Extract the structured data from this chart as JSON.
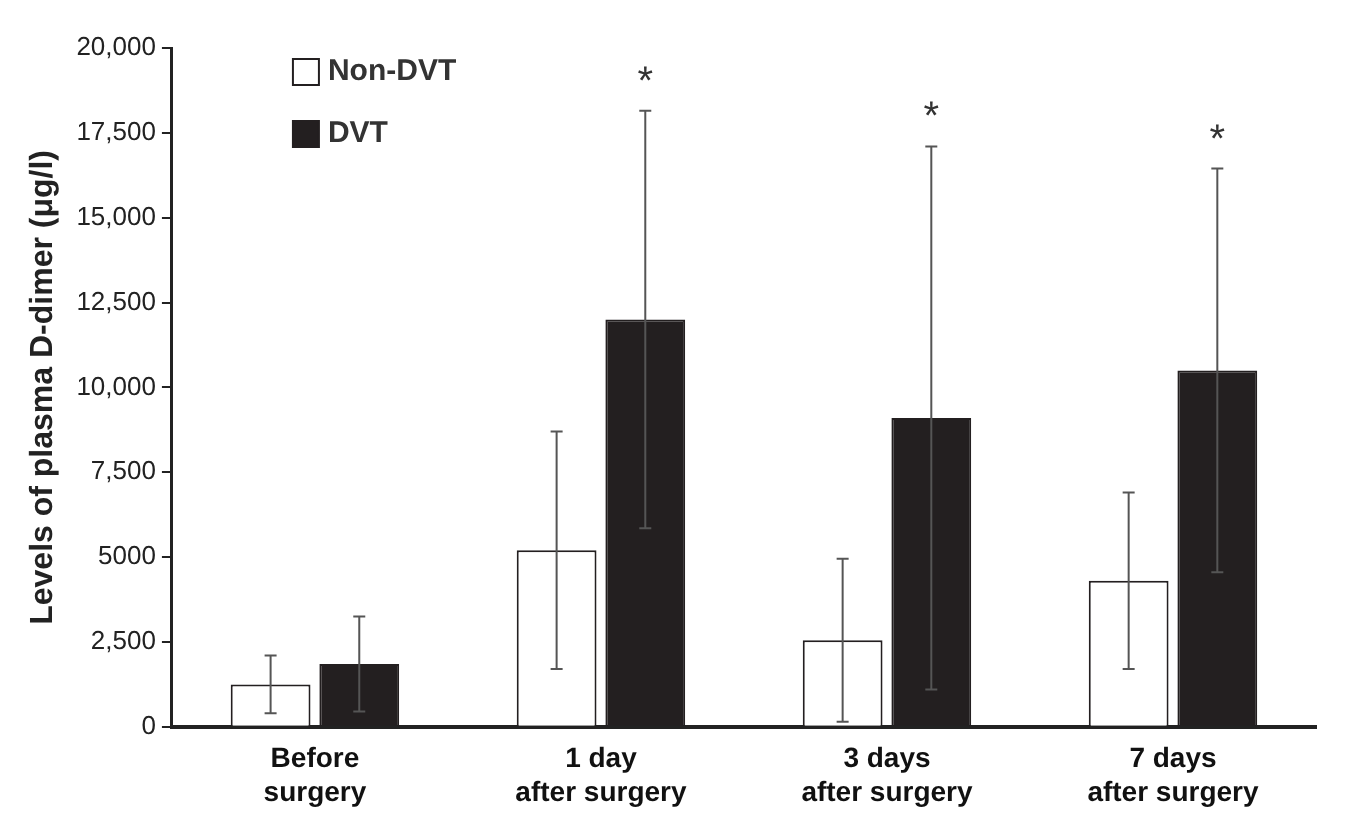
{
  "chart_data": {
    "type": "bar",
    "ylabel": "Levels of plasma D-dimer (μg/l)",
    "categories": [
      "Before\nsurgery",
      "1 day\nafter surgery",
      "3 days\nafter surgery",
      "7 days\nafter surgery"
    ],
    "series": [
      {
        "name": "Non-DVT",
        "color": "#ffffff",
        "values": [
          1250,
          5200,
          2550,
          4300
        ],
        "errors": [
          850,
          3500,
          2400,
          2600
        ]
      },
      {
        "name": "DVT",
        "color": "#231f20",
        "values": [
          1850,
          12000,
          9100,
          10500
        ],
        "errors": [
          1400,
          6150,
          8000,
          5950
        ]
      }
    ],
    "ylim": [
      0,
      20000
    ],
    "yticks": [
      0,
      {
        "value": 2500,
        "label": "2,500"
      },
      5000,
      {
        "value": 7500,
        "label": "7,500"
      },
      {
        "value": 10000,
        "label": "10,000"
      },
      {
        "value": 12500,
        "label": "12,500"
      },
      {
        "value": 15000,
        "label": "15,000"
      },
      {
        "value": 17500,
        "label": "17,500"
      },
      {
        "value": 20000,
        "label": "20,000"
      }
    ],
    "annotations": [
      "*",
      "*",
      "*"
    ],
    "legend": "top left",
    "grid": false,
    "marker": "square"
  }
}
